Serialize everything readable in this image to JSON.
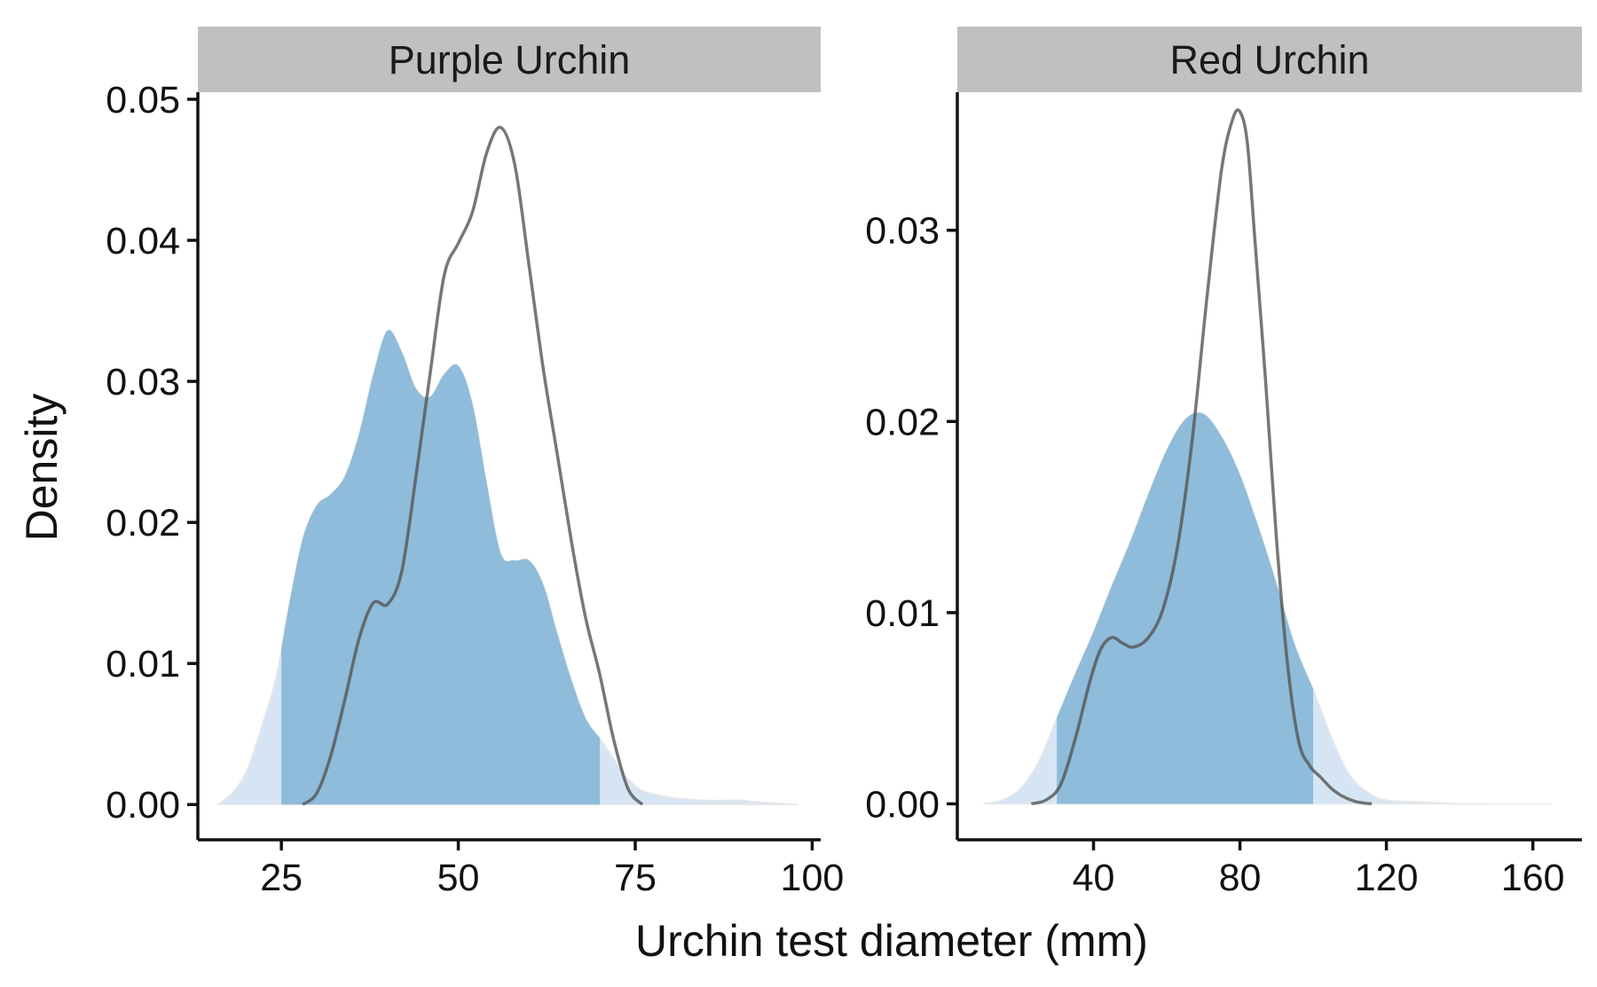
{
  "chart_data": {
    "type": "area",
    "xlabel": "Urchin test diameter (mm)",
    "ylabel": "Density",
    "colors": {
      "filled_density": "#8ebcda",
      "full_density": "#d6e5f4",
      "reference_line": "#555555",
      "strip": "#c0c0c0"
    },
    "panels": [
      {
        "title": "Purple Urchin",
        "xlim": [
          13.2,
          101.2
        ],
        "ylim": [
          -0.0025,
          0.0505
        ],
        "xticks": [
          "25",
          "50",
          "75",
          "100"
        ],
        "xtick_values": [
          25,
          50,
          75,
          100
        ],
        "yticks": [
          "0.00",
          "0.01",
          "0.02",
          "0.03",
          "0.04",
          "0.05"
        ],
        "ytick_values": [
          0,
          0.01,
          0.02,
          0.03,
          0.04,
          0.05
        ],
        "highlight_range": [
          25,
          70
        ],
        "series": [
          {
            "name": "",
            "kind": "density-area",
            "x": [
              16,
              18,
              20,
              22,
              24,
              25,
              26,
              28,
              30,
              32,
              34,
              36,
              38,
              40,
              42,
              44,
              46,
              48,
              50,
              52,
              54,
              56,
              58,
              60,
              62,
              64,
              66,
              68,
              70,
              72,
              74,
              76,
              78,
              80,
              82,
              85,
              88,
              90,
              92,
              95,
              98
            ],
            "y": [
              0.0,
              0.0008,
              0.0023,
              0.0052,
              0.0085,
              0.011,
              0.0139,
              0.0188,
              0.0212,
              0.022,
              0.0233,
              0.0263,
              0.0305,
              0.0336,
              0.0321,
              0.0295,
              0.0289,
              0.0305,
              0.0311,
              0.0284,
              0.0228,
              0.0178,
              0.0173,
              0.0173,
              0.0156,
              0.0121,
              0.0088,
              0.0061,
              0.0047,
              0.0032,
              0.0018,
              0.001,
              0.0007,
              0.0005,
              0.0004,
              0.0003,
              0.0003,
              0.0003,
              0.0002,
              0.0001,
              0.0
            ]
          },
          {
            "name": "",
            "kind": "density-line",
            "x": [
              28,
              30,
              32,
              34,
              36,
              38,
              40,
              42,
              44,
              46,
              48,
              50,
              52,
              54,
              56,
              58,
              60,
              62,
              64,
              66,
              68,
              70,
              72,
              74,
              76
            ],
            "y": [
              0.0,
              0.0008,
              0.0035,
              0.0075,
              0.0118,
              0.0143,
              0.0142,
              0.0165,
              0.0232,
              0.0305,
              0.0375,
              0.0398,
              0.042,
              0.0462,
              0.048,
              0.0453,
              0.0382,
              0.0309,
              0.0248,
              0.0186,
              0.0132,
              0.0092,
              0.0045,
              0.0011,
              0.0
            ]
          }
        ]
      },
      {
        "title": "Red Urchin",
        "xlim": [
          2.8,
          173.4
        ],
        "ylim": [
          -0.00188,
          0.03722
        ],
        "xticks": [
          "40",
          "80",
          "120",
          "160"
        ],
        "xtick_values": [
          40,
          80,
          120,
          160
        ],
        "yticks": [
          "0.00",
          "0.01",
          "0.02",
          "0.03"
        ],
        "ytick_values": [
          0,
          0.01,
          0.02,
          0.03
        ],
        "highlight_range": [
          30,
          100
        ],
        "series": [
          {
            "name": "",
            "kind": "density-area",
            "x": [
              10,
              15,
              20,
              25,
              30,
              35,
              40,
              45,
              50,
              55,
              60,
              65,
              70,
              75,
              80,
              85,
              90,
              95,
              100,
              105,
              110,
              115,
              120,
              130,
              140,
              150,
              165
            ],
            "y": [
              0.0,
              0.0002,
              0.0008,
              0.0022,
              0.0045,
              0.0068,
              0.009,
              0.0114,
              0.0137,
              0.0162,
              0.0185,
              0.0201,
              0.0204,
              0.0192,
              0.0172,
              0.0145,
              0.0115,
              0.0083,
              0.006,
              0.0035,
              0.0015,
              0.0006,
              0.0002,
              0.0001,
              0.0,
              0.0,
              0.0
            ]
          },
          {
            "name": "",
            "kind": "density-line",
            "x": [
              23,
              27,
              31,
              35,
              39,
              42,
              45,
              48,
              51,
              55,
              59,
              63,
              67,
              71,
              75,
              78,
              80,
              82,
              84,
              87,
              90,
              93,
              96,
              99,
              102,
              105,
              108,
              112,
              116
            ],
            "y": [
              0.0,
              0.0002,
              0.001,
              0.0034,
              0.0064,
              0.0081,
              0.0087,
              0.0084,
              0.0082,
              0.0087,
              0.0102,
              0.0135,
              0.0191,
              0.0265,
              0.0332,
              0.0358,
              0.0362,
              0.0346,
              0.0297,
              0.0221,
              0.0138,
              0.0073,
              0.0033,
              0.002,
              0.0014,
              0.0008,
              0.0004,
              0.0001,
              0.0
            ]
          }
        ]
      }
    ]
  }
}
